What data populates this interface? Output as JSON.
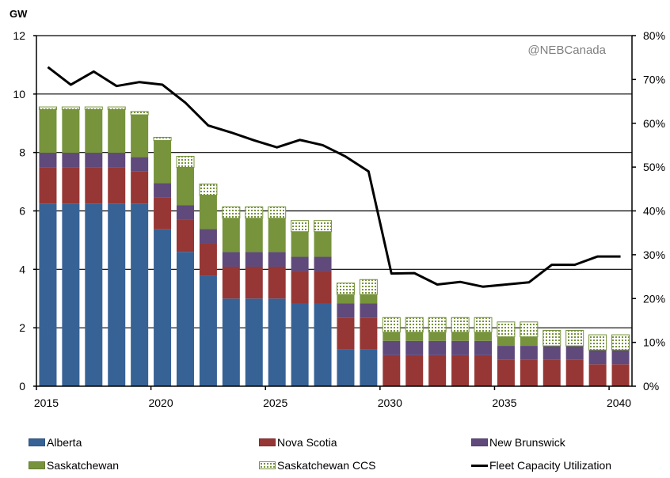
{
  "chart_data": {
    "type": "bar",
    "stacked": true,
    "title": "",
    "ylabel": "GW",
    "y2label": "",
    "watermark": "@NEBCanada",
    "ylim": [
      0,
      12
    ],
    "yticks": [
      "0",
      "2",
      "4",
      "6",
      "8",
      "10",
      "12"
    ],
    "y2lim": [
      0,
      80
    ],
    "y2ticks": [
      "0%",
      "10%",
      "20%",
      "30%",
      "40%",
      "50%",
      "60%",
      "70%",
      "80%"
    ],
    "xtick_labels": [
      "2015",
      "2020",
      "2025",
      "2030",
      "2035",
      "2040"
    ],
    "grid": true,
    "legend_position": "bottom",
    "categories": [
      2015,
      2016,
      2017,
      2018,
      2019,
      2020,
      2021,
      2022,
      2023,
      2024,
      2025,
      2026,
      2027,
      2028,
      2029,
      2030,
      2031,
      2032,
      2033,
      2034,
      2035,
      2036,
      2037,
      2038,
      2039,
      2040
    ],
    "series": [
      {
        "name": "Alberta",
        "color": "#376296",
        "values": [
          6.25,
          6.25,
          6.25,
          6.25,
          6.25,
          5.37,
          4.6,
          3.79,
          3.0,
          3.0,
          3.0,
          2.83,
          2.83,
          1.25,
          1.25,
          0,
          0,
          0,
          0,
          0,
          0,
          0,
          0,
          0,
          0,
          0
        ]
      },
      {
        "name": "Nova Scotia",
        "color": "#963735",
        "values": [
          1.25,
          1.25,
          1.25,
          1.25,
          1.1,
          1.1,
          1.1,
          1.1,
          1.09,
          1.09,
          1.09,
          1.11,
          1.11,
          1.1,
          1.1,
          1.06,
          1.06,
          1.06,
          1.06,
          1.06,
          0.9,
          0.9,
          0.9,
          0.9,
          0.75,
          0.75
        ]
      },
      {
        "name": "New Brunswick",
        "color": "#60497b",
        "values": [
          0.49,
          0.49,
          0.49,
          0.49,
          0.49,
          0.48,
          0.49,
          0.49,
          0.5,
          0.5,
          0.5,
          0.49,
          0.49,
          0.49,
          0.49,
          0.49,
          0.49,
          0.49,
          0.49,
          0.49,
          0.48,
          0.48,
          0.48,
          0.48,
          0.49,
          0.49
        ]
      },
      {
        "name": "Saskatchewan",
        "color": "#77933c",
        "values": [
          1.48,
          1.48,
          1.48,
          1.48,
          1.45,
          1.46,
          1.3,
          1.16,
          1.16,
          1.16,
          1.16,
          0.86,
          0.86,
          0.3,
          0.3,
          0.3,
          0.3,
          0.3,
          0.3,
          0.3,
          0.31,
          0.31,
          0,
          0,
          0,
          0
        ]
      },
      {
        "name": "Saskatchewan CCS",
        "color": "#77933c",
        "pattern": "dots",
        "values": [
          0.09,
          0.09,
          0.09,
          0.09,
          0.11,
          0.11,
          0.38,
          0.38,
          0.39,
          0.39,
          0.39,
          0.38,
          0.38,
          0.39,
          0.51,
          0.5,
          0.5,
          0.5,
          0.5,
          0.5,
          0.51,
          0.51,
          0.53,
          0.53,
          0.52,
          0.52
        ]
      }
    ],
    "line": {
      "name": "Fleet Capacity Utilization",
      "color": "#000000",
      "axis": "right",
      "values": [
        72.8,
        68.8,
        71.8,
        68.5,
        69.4,
        68.8,
        64.7,
        59.5,
        57.9,
        56.1,
        54.5,
        56.2,
        55.0,
        52.4,
        49.0,
        25.7,
        25.8,
        23.2,
        23.8,
        22.7,
        23.2,
        23.7,
        27.7,
        27.7,
        29.6,
        29.6
      ]
    }
  }
}
